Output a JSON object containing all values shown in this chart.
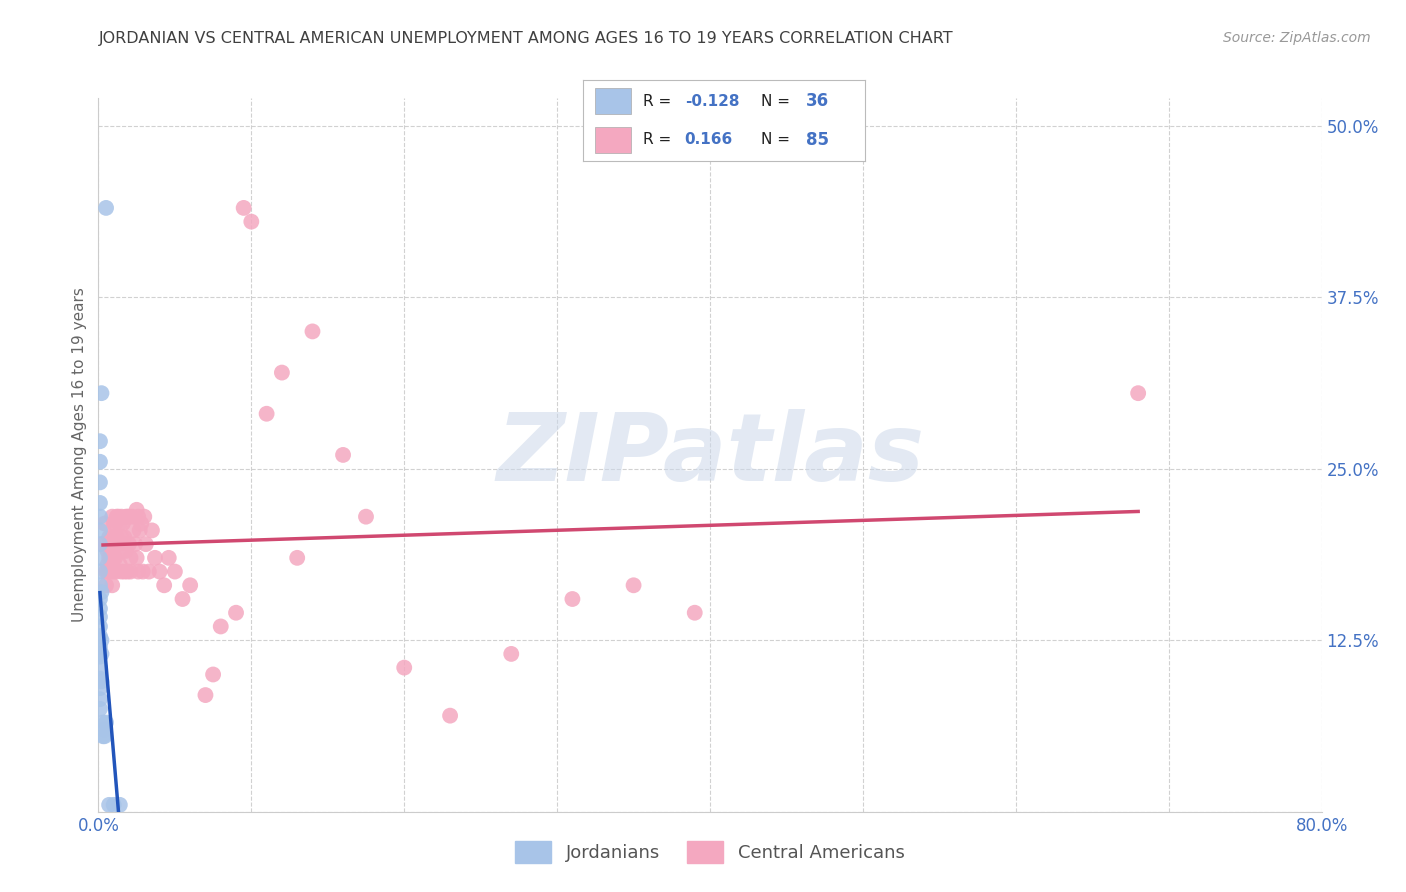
{
  "title": "JORDANIAN VS CENTRAL AMERICAN UNEMPLOYMENT AMONG AGES 16 TO 19 YEARS CORRELATION CHART",
  "source": "Source: ZipAtlas.com",
  "ylabel": "Unemployment Among Ages 16 to 19 years",
  "xlim": [
    0.0,
    0.8
  ],
  "ylim": [
    0.0,
    0.52
  ],
  "ytick_positions": [
    0.0,
    0.125,
    0.25,
    0.375,
    0.5
  ],
  "ytick_labels": [
    "",
    "12.5%",
    "25.0%",
    "37.5%",
    "50.0%"
  ],
  "xtick_positions": [
    0.0,
    0.8
  ],
  "xtick_labels": [
    "0.0%",
    "80.0%"
  ],
  "blue_dot_color": "#a8c4e8",
  "pink_dot_color": "#f4a8c0",
  "blue_line_color": "#2255bb",
  "blue_dash_color": "#b8d0f0",
  "pink_line_color": "#d04870",
  "grid_color": "#cccccc",
  "title_color": "#404040",
  "right_label_color": "#4472c4",
  "watermark": "ZIPatlas",
  "legend_r_blue": "-0.128",
  "legend_n_blue": "36",
  "legend_r_pink": "0.166",
  "legend_n_pink": "85",
  "legend_bottom_label1": "Jordanians",
  "legend_bottom_label2": "Central Americans",
  "blue_dots_x": [
    0.005,
    0.002,
    0.001,
    0.001,
    0.001,
    0.001,
    0.001,
    0.001,
    0.001,
    0.001,
    0.001,
    0.001,
    0.001,
    0.001,
    0.001,
    0.001,
    0.001,
    0.001,
    0.001,
    0.001,
    0.001,
    0.001,
    0.001,
    0.001,
    0.002,
    0.002,
    0.002,
    0.002,
    0.003,
    0.003,
    0.004,
    0.004,
    0.005,
    0.007,
    0.01,
    0.014
  ],
  "blue_dots_y": [
    0.44,
    0.305,
    0.27,
    0.255,
    0.24,
    0.225,
    0.215,
    0.205,
    0.195,
    0.185,
    0.175,
    0.165,
    0.155,
    0.148,
    0.142,
    0.135,
    0.128,
    0.12,
    0.113,
    0.105,
    0.097,
    0.09,
    0.082,
    0.075,
    0.115,
    0.095,
    0.125,
    0.16,
    0.065,
    0.055,
    0.055,
    0.06,
    0.065,
    0.005,
    0.005,
    0.005
  ],
  "pink_dots_x": [
    0.003,
    0.004,
    0.005,
    0.005,
    0.006,
    0.006,
    0.006,
    0.007,
    0.007,
    0.007,
    0.008,
    0.008,
    0.008,
    0.009,
    0.009,
    0.009,
    0.01,
    0.01,
    0.01,
    0.01,
    0.011,
    0.011,
    0.011,
    0.012,
    0.012,
    0.012,
    0.013,
    0.013,
    0.014,
    0.014,
    0.015,
    0.015,
    0.015,
    0.016,
    0.016,
    0.017,
    0.017,
    0.018,
    0.018,
    0.019,
    0.019,
    0.02,
    0.02,
    0.021,
    0.021,
    0.022,
    0.023,
    0.024,
    0.025,
    0.025,
    0.026,
    0.026,
    0.027,
    0.028,
    0.029,
    0.03,
    0.031,
    0.033,
    0.035,
    0.037,
    0.04,
    0.043,
    0.046,
    0.05,
    0.055,
    0.06,
    0.07,
    0.075,
    0.08,
    0.09,
    0.095,
    0.1,
    0.11,
    0.12,
    0.13,
    0.14,
    0.16,
    0.175,
    0.2,
    0.23,
    0.27,
    0.31,
    0.35,
    0.39,
    0.68
  ],
  "pink_dots_y": [
    0.195,
    0.21,
    0.175,
    0.165,
    0.19,
    0.18,
    0.175,
    0.2,
    0.195,
    0.185,
    0.195,
    0.185,
    0.175,
    0.215,
    0.2,
    0.165,
    0.21,
    0.195,
    0.185,
    0.175,
    0.21,
    0.2,
    0.185,
    0.215,
    0.2,
    0.175,
    0.215,
    0.195,
    0.21,
    0.18,
    0.215,
    0.2,
    0.175,
    0.21,
    0.19,
    0.2,
    0.175,
    0.215,
    0.19,
    0.215,
    0.175,
    0.215,
    0.195,
    0.185,
    0.175,
    0.215,
    0.205,
    0.195,
    0.22,
    0.185,
    0.215,
    0.175,
    0.205,
    0.21,
    0.175,
    0.215,
    0.195,
    0.175,
    0.205,
    0.185,
    0.175,
    0.165,
    0.185,
    0.175,
    0.155,
    0.165,
    0.085,
    0.1,
    0.135,
    0.145,
    0.44,
    0.43,
    0.29,
    0.32,
    0.185,
    0.35,
    0.26,
    0.215,
    0.105,
    0.07,
    0.115,
    0.155,
    0.165,
    0.145,
    0.305
  ]
}
